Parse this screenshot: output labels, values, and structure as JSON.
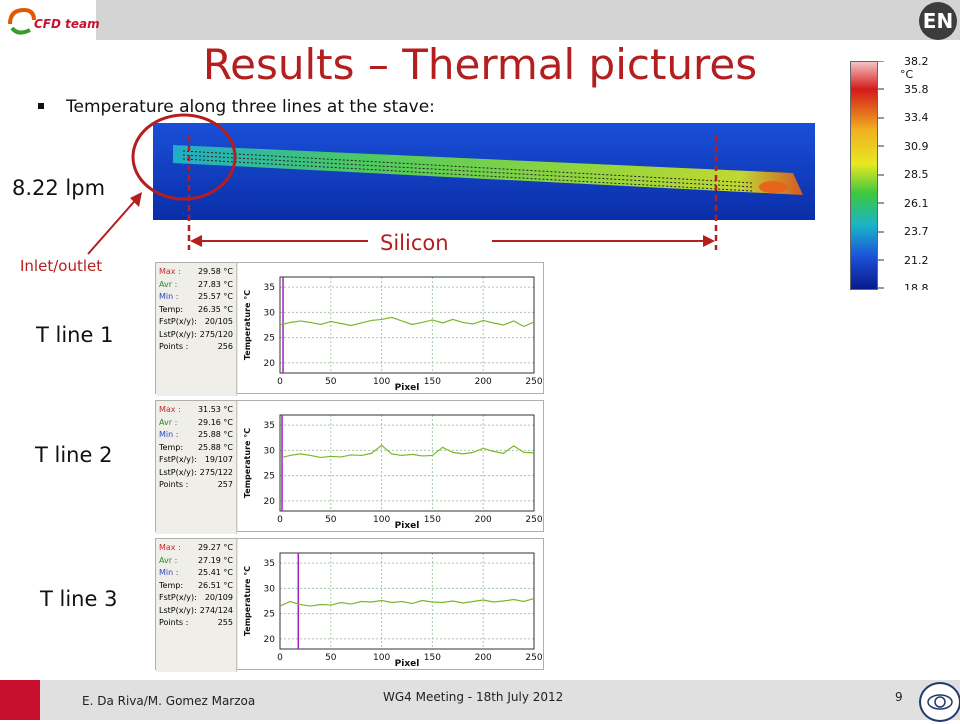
{
  "header": {
    "logo_text": "CFD team",
    "badge_text": "EN"
  },
  "slide": {
    "title": "Results – Thermal pictures",
    "bullet": "Temperature along three lines at the stave:",
    "flow_label": "8.22 lpm",
    "inlet_label": "Inlet/outlet",
    "silicon_label": "Silicon"
  },
  "colors": {
    "title": "#b41e1e",
    "annotation": "#b41e1e",
    "footer_accent": "#c8102e"
  },
  "color_scale": {
    "unit": "°C",
    "ticks": [
      "38.2",
      "35.8",
      "33.4",
      "30.9",
      "28.5",
      "26.1",
      "23.7",
      "21.2",
      "18.8"
    ]
  },
  "panels": [
    {
      "label": "T line 1",
      "stats": [
        {
          "key": "Max :",
          "value": "29.58 °C"
        },
        {
          "key": "Avr :",
          "value": "27.83 °C"
        },
        {
          "key": "Min :",
          "value": "25.57 °C"
        },
        {
          "key": "Temp:",
          "value": "26.35 °C"
        },
        {
          "key": "FstP(x/y):",
          "value": "20/105"
        },
        {
          "key": "LstP(x/y):",
          "value": "275/120"
        },
        {
          "key": "Points :",
          "value": "256"
        }
      ]
    },
    {
      "label": "T line 2",
      "stats": [
        {
          "key": "Max :",
          "value": "31.53 °C"
        },
        {
          "key": "Avr :",
          "value": "29.16 °C"
        },
        {
          "key": "Min :",
          "value": "25.88 °C"
        },
        {
          "key": "Temp:",
          "value": "25.88 °C"
        },
        {
          "key": "FstP(x/y):",
          "value": "19/107"
        },
        {
          "key": "LstP(x/y):",
          "value": "275/122"
        },
        {
          "key": "Points :",
          "value": "257"
        }
      ]
    },
    {
      "label": "T line 3",
      "stats": [
        {
          "key": "Max :",
          "value": "29.27 °C"
        },
        {
          "key": "Avr :",
          "value": "27.19 °C"
        },
        {
          "key": "Min :",
          "value": "25.41 °C"
        },
        {
          "key": "Temp:",
          "value": "26.51 °C"
        },
        {
          "key": "FstP(x/y):",
          "value": "20/109"
        },
        {
          "key": "LstP(x/y):",
          "value": "274/124"
        },
        {
          "key": "Points :",
          "value": "255"
        }
      ]
    }
  ],
  "chart_data": [
    {
      "type": "line",
      "xlabel": "Pixel",
      "ylabel": "Temperature °C",
      "xlim": [
        0,
        250
      ],
      "ylim": [
        18,
        37
      ],
      "xticks": [
        0,
        50,
        100,
        150,
        200,
        250
      ],
      "yticks": [
        20,
        25,
        30,
        35
      ],
      "marker_x": 3,
      "x": [
        0,
        10,
        20,
        30,
        40,
        50,
        60,
        70,
        80,
        90,
        100,
        110,
        120,
        130,
        140,
        150,
        160,
        170,
        180,
        190,
        200,
        210,
        220,
        230,
        240,
        250
      ],
      "series": [
        {
          "values": [
            27.5,
            28.0,
            28.3,
            28.0,
            27.6,
            28.2,
            27.8,
            27.4,
            27.9,
            28.4,
            28.6,
            29.0,
            28.3,
            27.6,
            28.0,
            28.5,
            27.9,
            28.6,
            28.0,
            27.7,
            28.4,
            27.9,
            27.5,
            28.3,
            27.2,
            28.1
          ]
        }
      ]
    },
    {
      "type": "line",
      "xlabel": "Pixel",
      "ylabel": "Temperature °C",
      "xlim": [
        0,
        250
      ],
      "ylim": [
        18,
        37
      ],
      "xticks": [
        0,
        50,
        100,
        150,
        200,
        250
      ],
      "yticks": [
        20,
        25,
        30,
        35
      ],
      "marker_x": 2,
      "x": [
        0,
        10,
        20,
        30,
        40,
        50,
        60,
        70,
        80,
        90,
        100,
        110,
        120,
        130,
        140,
        150,
        160,
        170,
        180,
        190,
        200,
        210,
        220,
        230,
        240,
        250
      ],
      "series": [
        {
          "values": [
            28.5,
            29.0,
            29.3,
            29.0,
            28.6,
            28.8,
            28.7,
            29.1,
            29.0,
            29.4,
            31.0,
            29.3,
            29.0,
            29.2,
            28.9,
            29.0,
            30.6,
            29.6,
            29.3,
            29.6,
            30.4,
            29.8,
            29.4,
            30.9,
            29.6,
            29.5
          ]
        }
      ]
    },
    {
      "type": "line",
      "xlabel": "Pixel",
      "ylabel": "Temperature °C",
      "xlim": [
        0,
        250
      ],
      "ylim": [
        18,
        37
      ],
      "xticks": [
        0,
        50,
        100,
        150,
        200,
        250
      ],
      "yticks": [
        20,
        25,
        30,
        35
      ],
      "marker_x": 18,
      "x": [
        0,
        10,
        20,
        30,
        40,
        50,
        60,
        70,
        80,
        90,
        100,
        110,
        120,
        130,
        140,
        150,
        160,
        170,
        180,
        190,
        200,
        210,
        220,
        230,
        240,
        250
      ],
      "series": [
        {
          "values": [
            26.5,
            27.4,
            26.8,
            26.5,
            26.8,
            26.7,
            27.2,
            26.9,
            27.4,
            27.3,
            27.6,
            27.2,
            27.4,
            27.0,
            27.6,
            27.3,
            27.2,
            27.5,
            27.1,
            27.4,
            27.7,
            27.3,
            27.5,
            27.8,
            27.4,
            28.0
          ]
        }
      ]
    }
  ],
  "footer": {
    "authors": "E. Da Riva/M. Gomez Marzoa",
    "meeting": "WG4 Meeting - 18th July 2012",
    "page": "9"
  }
}
